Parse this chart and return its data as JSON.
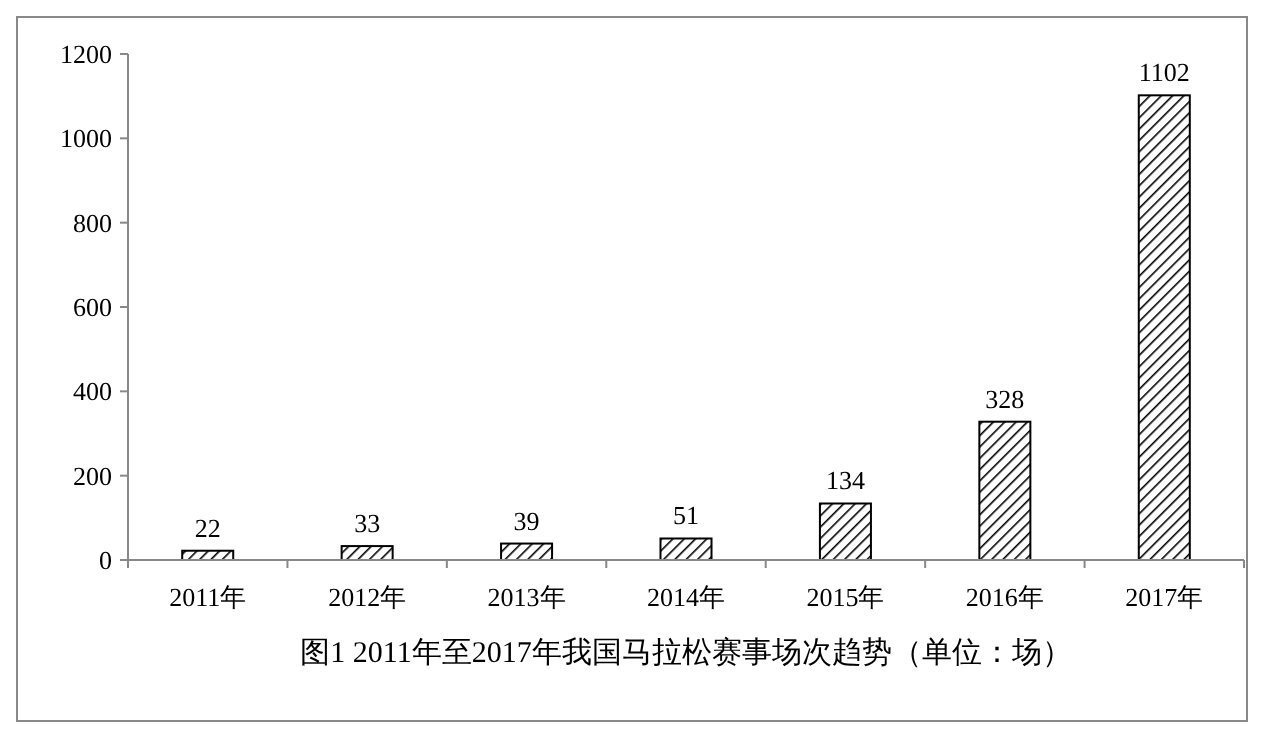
{
  "chart_data": {
    "type": "bar",
    "title": "图1 2011年至2017年我国马拉松赛事场次趋势（单位：场）",
    "categories": [
      "2011年",
      "2012年",
      "2013年",
      "2014年",
      "2015年",
      "2016年",
      "2017年"
    ],
    "values": [
      22,
      33,
      39,
      51,
      134,
      328,
      1102
    ],
    "color": "#000000",
    "ylim": [
      0,
      1200
    ],
    "yticks": [
      0,
      200,
      400,
      600,
      800,
      1000,
      1200
    ],
    "grid": false,
    "data_labels": true
  }
}
